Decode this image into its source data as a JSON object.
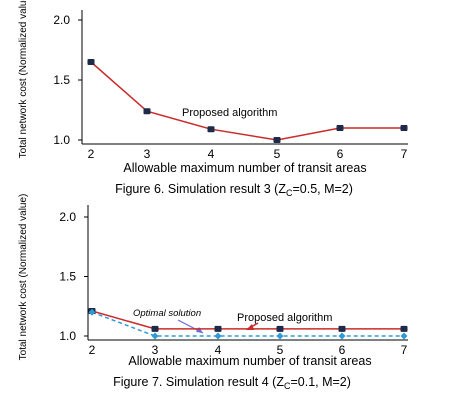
{
  "chart_data": [
    {
      "type": "line",
      "x": [
        2,
        3,
        4,
        5,
        6,
        7
      ],
      "xlabel": "Allowable maximum number of transit areas",
      "ylabel": "Total network cost (Normalized value)",
      "ylim": [
        1.0,
        2.0
      ],
      "xlim": [
        2,
        7
      ],
      "yticks": [
        "1.0",
        "1.5",
        "2.0"
      ],
      "xticks": [
        "2",
        "3",
        "4",
        "5",
        "6",
        "7"
      ],
      "series": [
        {
          "name": "Proposed algorithm",
          "values": [
            1.65,
            1.24,
            1.09,
            1.0,
            1.1,
            1.1
          ],
          "color": "#cc2a2a",
          "marker_color": "#1e2a4a",
          "style": "solid"
        }
      ],
      "annotations": [
        {
          "text": "Proposed algorithm"
        }
      ],
      "caption": {
        "pre": "Figure 6. Simulation result 3 (Z",
        "sub": "C",
        "post": "=0.5, M=2)"
      },
      "grid": false
    },
    {
      "type": "line",
      "x": [
        2,
        3,
        4,
        5,
        6,
        7
      ],
      "xlabel": "Allowable maximum number of transit areas",
      "ylabel": "Total network cost (Normalized value)",
      "ylim": [
        1.0,
        2.0
      ],
      "xlim": [
        2,
        7
      ],
      "yticks": [
        "1.0",
        "1.5",
        "2.0"
      ],
      "xticks": [
        "2",
        "3",
        "4",
        "5",
        "6",
        "7"
      ],
      "series": [
        {
          "name": "Proposed algorithm",
          "values": [
            1.21,
            1.06,
            1.06,
            1.06,
            1.06,
            1.06
          ],
          "color": "#cc2a2a",
          "marker_color": "#1e2a4a",
          "style": "solid"
        },
        {
          "name": "Optimal solution",
          "values": [
            1.2,
            1.0,
            1.0,
            1.0,
            1.0,
            1.0
          ],
          "color": "#2e9ad6",
          "marker_color": "#2e9ad6",
          "style": "dashed"
        }
      ],
      "annotations": [
        {
          "text": "Optimal solution"
        },
        {
          "text": "Proposed algorithm"
        }
      ],
      "caption": {
        "pre": "Figure 7. Simulation result 4 (Z",
        "sub": "C",
        "post": "=0.1, M=2)"
      },
      "grid": false
    }
  ]
}
